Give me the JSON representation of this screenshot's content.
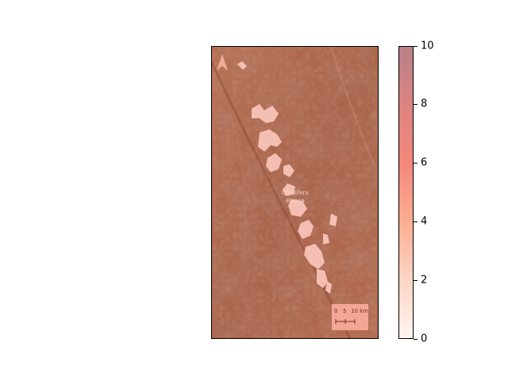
{
  "map": {
    "place_label_line1": "Cordillera",
    "place_label_line2": "Blanca",
    "north_arrow_icon": "north-arrow-icon",
    "scale_bar": {
      "labels": [
        "0",
        "5",
        "10 km"
      ]
    }
  },
  "colorbar": {
    "ticks": [
      "0",
      "2",
      "4",
      "6",
      "8",
      "10"
    ],
    "range": [
      0,
      10
    ],
    "colormap": [
      "#fff5f0",
      "#fdd5c4",
      "#fcae92",
      "#f4877a",
      "#dd8482",
      "#b98088"
    ]
  },
  "colors": {
    "terrain_base": "#a55c42",
    "terrain_dark": "#7f4331",
    "snow": "#f8c4b8"
  }
}
